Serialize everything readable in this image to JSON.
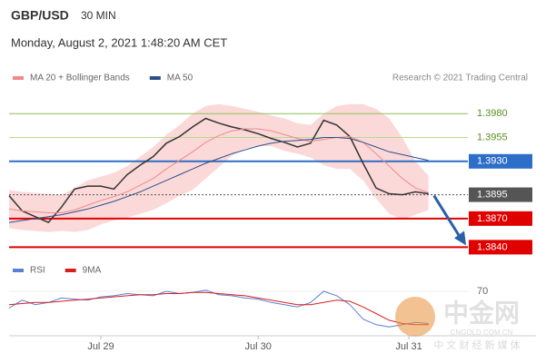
{
  "header": {
    "symbol": "GBP/USD",
    "timeframe": "30 MIN",
    "datetime": "Monday, August 2, 2021 1:48:20 AM CET",
    "source": "Research © 2021 Trading Central"
  },
  "watermark": {
    "brand": "中金网",
    "site": "CNGOLD.COM.CN",
    "slogan": "中 文 财 经 新 媒 体"
  },
  "chart_data": [
    {
      "type": "line",
      "x": [
        0,
        4,
        8,
        12,
        16,
        20,
        24,
        28,
        32,
        36,
        40,
        44,
        48,
        52,
        56,
        60,
        64,
        68,
        72,
        76,
        80,
        84,
        88,
        92,
        96,
        100,
        104,
        108,
        112,
        116,
        120,
        124,
        128
      ],
      "xlim": [
        0,
        140
      ],
      "ylim": [
        1.3828,
        1.4004
      ],
      "xticks": [
        {
          "value": 28,
          "label": "Jul 29"
        },
        {
          "value": 76,
          "label": "Jul 30"
        },
        {
          "value": 122,
          "label": "Jul 31"
        }
      ],
      "series": [
        {
          "color": "#333333",
          "values": [
            1.3894,
            1.3878,
            1.3872,
            1.3866,
            1.3882,
            1.3901,
            1.3904,
            1.3904,
            1.3901,
            1.3916,
            1.3926,
            1.3935,
            1.3949,
            1.3956,
            1.3966,
            1.3975,
            1.397,
            1.3966,
            1.3963,
            1.3959,
            1.3954,
            1.395,
            1.3945,
            1.3949,
            1.3973,
            1.3968,
            1.3956,
            1.3928,
            1.3902,
            1.3896,
            1.3895,
            1.3898,
            1.3896
          ]
        },
        {
          "name": "MA 20 + Bollinger Bands",
          "color": "#f08a8a",
          "band_color": "#fcd9d9",
          "values": [
            1.388,
            1.3878,
            1.3877,
            1.3876,
            1.3876,
            1.3879,
            1.3884,
            1.3889,
            1.3893,
            1.3898,
            1.3905,
            1.3912,
            1.3922,
            1.3931,
            1.394,
            1.395,
            1.3957,
            1.3962,
            1.3964,
            1.3964,
            1.3962,
            1.3958,
            1.3954,
            1.3951,
            1.3953,
            1.3955,
            1.3956,
            1.395,
            1.3938,
            1.3925,
            1.3912,
            1.3902,
            1.3897
          ],
          "band_upper": [
            1.39,
            1.3898,
            1.3897,
            1.3896,
            1.3895,
            1.3902,
            1.391,
            1.3914,
            1.3918,
            1.3925,
            1.3935,
            1.3945,
            1.3958,
            1.3968,
            1.398,
            1.3988,
            1.399,
            1.3988,
            1.3985,
            1.3982,
            1.3978,
            1.3975,
            1.397,
            1.3968,
            1.398,
            1.3988,
            1.399,
            1.399,
            1.3985,
            1.3975,
            1.3955,
            1.393,
            1.3915
          ],
          "band_lower": [
            1.386,
            1.3858,
            1.3857,
            1.3856,
            1.3857,
            1.3856,
            1.3858,
            1.3864,
            1.3868,
            1.3871,
            1.3875,
            1.3879,
            1.3886,
            1.3894,
            1.39,
            1.3912,
            1.3924,
            1.3936,
            1.3943,
            1.3946,
            1.3946,
            1.3941,
            1.3938,
            1.3934,
            1.3926,
            1.3922,
            1.3922,
            1.391,
            1.3891,
            1.3875,
            1.3869,
            1.3874,
            1.3879
          ]
        },
        {
          "name": "MA 50",
          "color": "#2b4f8a",
          "values": [
            1.3866,
            1.3868,
            1.387,
            1.3872,
            1.3874,
            1.3877,
            1.388,
            1.3884,
            1.3888,
            1.3893,
            1.3898,
            1.3904,
            1.391,
            1.3916,
            1.3922,
            1.3928,
            1.3933,
            1.3938,
            1.3942,
            1.3946,
            1.3949,
            1.3951,
            1.3952,
            1.3953,
            1.3955,
            1.3955,
            1.3954,
            1.395,
            1.3945,
            1.394,
            1.3937,
            1.3934,
            1.3931
          ]
        }
      ],
      "levels": [
        {
          "value": 1.398,
          "label": "1.3980",
          "color": "#8cc152",
          "text_color": "#5a8f1f",
          "boxed": false
        },
        {
          "value": 1.3955,
          "color": "#b5dc8a",
          "text_color": "#5a8f1f",
          "boxed": false
        },
        {
          "value": 1.393,
          "label": "1.3930",
          "color": "#2d6ec9",
          "text_color": "#ffffff",
          "boxed": true
        },
        {
          "value": 1.3895,
          "color": "#555555",
          "text_color": "#ffffff",
          "boxed": true,
          "dotted": true
        },
        {
          "value": 1.387,
          "label": "1.3870",
          "color": "#e00000",
          "text_color": "#ffffff",
          "boxed": true
        },
        {
          "value": 1.384,
          "label": "1.3840",
          "color": "#e00000",
          "text_color": "#ffffff",
          "boxed": true
        }
      ]
    },
    {
      "type": "line",
      "x": [
        0,
        4,
        8,
        12,
        16,
        20,
        24,
        28,
        32,
        36,
        40,
        44,
        48,
        52,
        56,
        60,
        64,
        68,
        72,
        76,
        80,
        84,
        88,
        92,
        96,
        100,
        104,
        108,
        112,
        116,
        120,
        124,
        128
      ],
      "xlim": [
        0,
        140
      ],
      "ylim": [
        30,
        79
      ],
      "yticks": [
        70
      ],
      "series": [
        {
          "name": "RSI",
          "color": "#5b7fd6",
          "values": [
            55,
            62,
            58,
            60,
            64,
            63,
            62,
            65,
            66,
            68,
            67,
            66,
            70,
            68,
            69,
            71,
            67,
            66,
            64,
            63,
            60,
            58,
            56,
            60,
            70,
            66,
            58,
            45,
            40,
            38,
            40,
            42,
            41
          ]
        },
        {
          "name": "9MA",
          "color": "#d62020",
          "values": [
            58,
            59,
            60,
            60,
            61,
            62,
            63,
            64,
            65,
            66,
            67,
            67,
            68,
            68,
            69,
            69,
            68,
            67,
            66,
            64,
            62,
            60,
            58,
            58,
            60,
            62,
            61,
            56,
            50,
            44,
            41,
            40,
            40
          ]
        }
      ]
    }
  ]
}
